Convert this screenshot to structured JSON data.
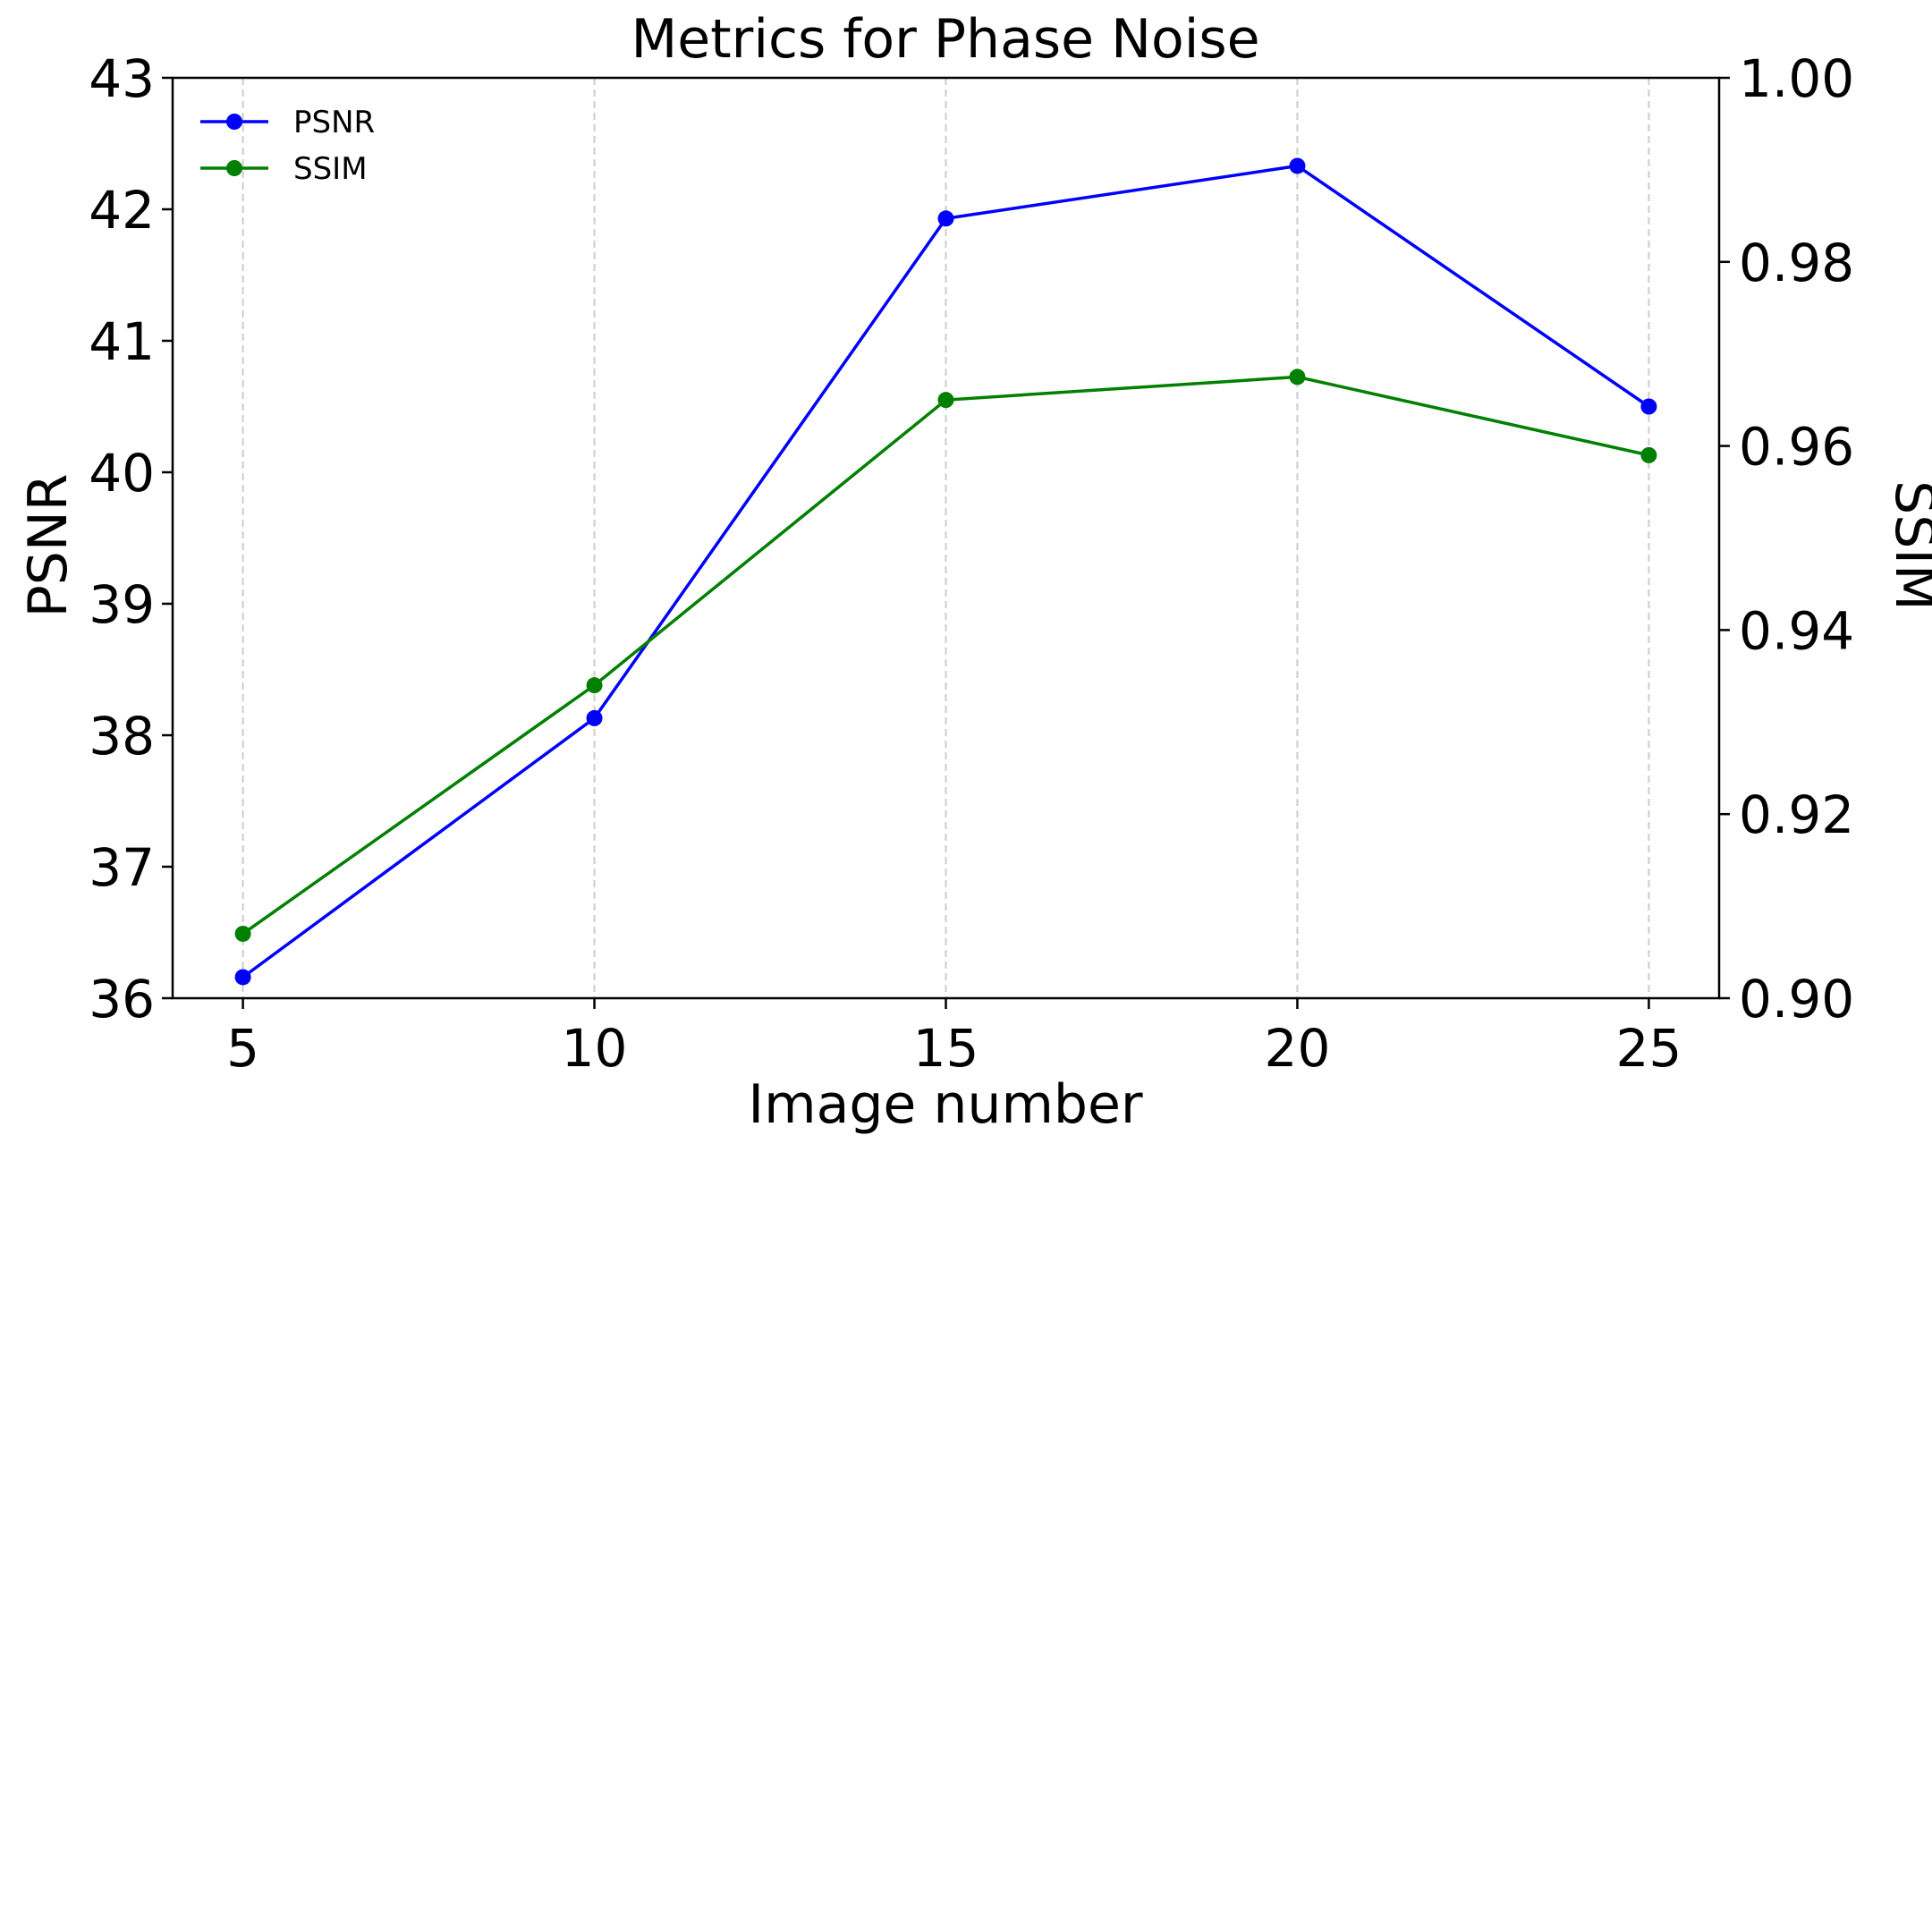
{
  "chart_data": {
    "type": "line",
    "title": "Metrics for Phase Noise",
    "xlabel": "Image number",
    "ylabel_left": "PSNR",
    "ylabel_right": "SSIM",
    "x": [
      5,
      10,
      15,
      20,
      25
    ],
    "xlim": [
      4,
      26
    ],
    "xticks": [
      "5",
      "10",
      "15",
      "20",
      "25"
    ],
    "ylim_left": [
      36,
      43
    ],
    "yticks_left": [
      "36",
      "37",
      "38",
      "39",
      "40",
      "41",
      "42",
      "43"
    ],
    "ylim_right": [
      0.9,
      1.0
    ],
    "yticks_right": [
      "0.90",
      "0.92",
      "0.94",
      "0.96",
      "0.98",
      "1.00"
    ],
    "grid": "vertical-dashed",
    "legend_position": "top-left",
    "series": [
      {
        "name": "PSNR",
        "axis": "left",
        "color": "#0000ff",
        "values": [
          36.16,
          38.13,
          41.93,
          42.33,
          40.5
        ]
      },
      {
        "name": "SSIM",
        "axis": "right",
        "color": "#008000",
        "values": [
          0.907,
          0.934,
          0.965,
          0.9675,
          0.959
        ]
      }
    ]
  }
}
